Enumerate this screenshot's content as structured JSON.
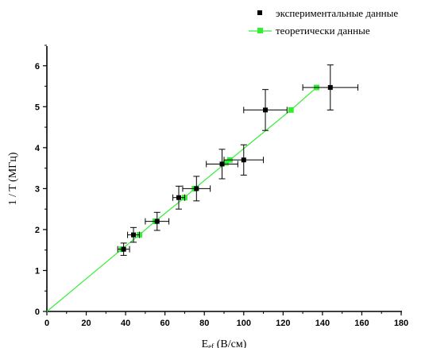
{
  "chart_data": {
    "type": "scatter",
    "xlabel": "Eₑₒ (В/см)",
    "xlabel_main": "E",
    "xlabel_sub": "ef",
    "xlabel_unit": " (В/см)",
    "ylabel": "1 / T (МГц)",
    "xlim": [
      0,
      180
    ],
    "ylim": [
      0,
      6.5
    ],
    "xticks": [
      0,
      20,
      40,
      60,
      80,
      100,
      120,
      140,
      160,
      180
    ],
    "yticks": [
      0,
      1,
      2,
      3,
      4,
      5,
      6
    ],
    "grid": false,
    "legend_position": "top-right",
    "series": [
      {
        "name": "экспериментальные данные",
        "marker": "square",
        "color": "#000000",
        "points": [
          {
            "x": 39,
            "y": 1.52,
            "xerr": 3,
            "yerr": 0.15
          },
          {
            "x": 44,
            "y": 1.87,
            "xerr": 3,
            "yerr": 0.18
          },
          {
            "x": 56,
            "y": 2.2,
            "xerr": 6,
            "yerr": 0.22
          },
          {
            "x": 67,
            "y": 2.78,
            "xerr": 3,
            "yerr": 0.28
          },
          {
            "x": 76,
            "y": 3.0,
            "xerr": 7,
            "yerr": 0.3
          },
          {
            "x": 89,
            "y": 3.6,
            "xerr": 8,
            "yerr": 0.36
          },
          {
            "x": 100,
            "y": 3.7,
            "xerr": 10,
            "yerr": 0.37
          },
          {
            "x": 111,
            "y": 4.92,
            "xerr": 11,
            "yerr": 0.5
          },
          {
            "x": 144,
            "y": 5.47,
            "xerr": 14,
            "yerr": 0.55
          }
        ]
      },
      {
        "name": "теоретически данные",
        "marker": "square",
        "line": true,
        "color": "#33ee33",
        "points": [
          {
            "x": 0,
            "y": 0
          },
          {
            "x": 38,
            "y": 1.52
          },
          {
            "x": 47,
            "y": 1.87
          },
          {
            "x": 55,
            "y": 2.2
          },
          {
            "x": 70,
            "y": 2.78
          },
          {
            "x": 75,
            "y": 3.0
          },
          {
            "x": 91,
            "y": 3.63
          },
          {
            "x": 93,
            "y": 3.7
          },
          {
            "x": 124,
            "y": 4.92
          },
          {
            "x": 137,
            "y": 5.47
          }
        ]
      }
    ]
  }
}
